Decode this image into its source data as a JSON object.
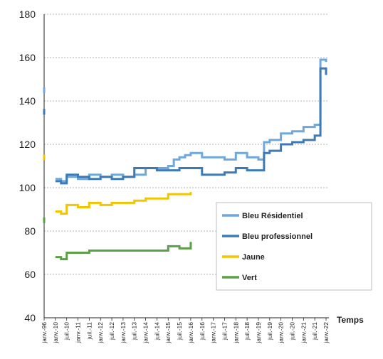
{
  "chart_data": {
    "type": "line",
    "title": "",
    "xlabel": "Temps",
    "ylabel": "",
    "ylim": [
      40,
      180
    ],
    "yticks": [
      40,
      60,
      80,
      100,
      120,
      140,
      160,
      180
    ],
    "grid": "horizontal dashed",
    "legend_position": "right-middle",
    "x_tick_labels": [
      "janv.-96",
      "janv.-10",
      "juil.-10",
      "janv.-11",
      "juil.-11",
      "janv.-12",
      "juil.-12",
      "janv.-13",
      "juil.-13",
      "janv.-14",
      "juil.-14",
      "janv.-15",
      "juil.-15",
      "janv.-16",
      "juil.-16",
      "janv.-17",
      "juil.-17",
      "janv.-18",
      "juil.-18",
      "janv.-19",
      "juil.-19",
      "janv.-20",
      "juil.-20",
      "janv.-21",
      "juil.-21",
      "janv.-22"
    ],
    "series": [
      {
        "name": "Bleu Résidentiel",
        "color": "#6fa8dc",
        "points": [
          [
            0,
            145
          ],
          [
            1,
            104
          ],
          [
            1.5,
            103
          ],
          [
            2,
            105
          ],
          [
            3,
            104
          ],
          [
            4,
            106
          ],
          [
            5,
            105
          ],
          [
            6,
            106
          ],
          [
            7,
            105
          ],
          [
            8,
            106
          ],
          [
            9,
            109
          ],
          [
            10,
            109
          ],
          [
            11,
            110
          ],
          [
            11.5,
            113
          ],
          [
            12,
            114
          ],
          [
            12.5,
            115
          ],
          [
            13,
            116
          ],
          [
            14,
            114
          ],
          [
            15,
            114
          ],
          [
            16,
            113
          ],
          [
            17,
            116
          ],
          [
            18,
            114
          ],
          [
            19,
            113
          ],
          [
            19.5,
            121
          ],
          [
            20,
            122
          ],
          [
            21,
            125
          ],
          [
            22,
            126
          ],
          [
            23,
            128
          ],
          [
            24,
            129
          ],
          [
            24.5,
            159
          ],
          [
            25,
            158
          ]
        ]
      },
      {
        "name": "Bleu professionnel",
        "color": "#3d7ab8",
        "points": [
          [
            0,
            135
          ],
          [
            1,
            103
          ],
          [
            1.5,
            102
          ],
          [
            2,
            106
          ],
          [
            3,
            105
          ],
          [
            4,
            104
          ],
          [
            5,
            105
          ],
          [
            6,
            104
          ],
          [
            7,
            105
          ],
          [
            8,
            109
          ],
          [
            9,
            109
          ],
          [
            10,
            108
          ],
          [
            11,
            108
          ],
          [
            12,
            109
          ],
          [
            13,
            109
          ],
          [
            14,
            106
          ],
          [
            15,
            106
          ],
          [
            16,
            107
          ],
          [
            17,
            109
          ],
          [
            18,
            108
          ],
          [
            19,
            108
          ],
          [
            19.5,
            116
          ],
          [
            20,
            117
          ],
          [
            21,
            120
          ],
          [
            22,
            121
          ],
          [
            23,
            122
          ],
          [
            24,
            124
          ],
          [
            24.5,
            155
          ],
          [
            25,
            152
          ]
        ]
      },
      {
        "name": "Jaune",
        "color": "#f2c500",
        "points": [
          [
            0,
            114
          ],
          [
            1,
            89
          ],
          [
            1.5,
            88
          ],
          [
            2,
            92
          ],
          [
            3,
            91
          ],
          [
            4,
            93
          ],
          [
            5,
            92
          ],
          [
            6,
            93
          ],
          [
            7,
            93
          ],
          [
            8,
            94
          ],
          [
            9,
            95
          ],
          [
            10,
            95
          ],
          [
            11,
            97
          ],
          [
            12,
            97
          ],
          [
            13,
            98
          ]
        ]
      },
      {
        "name": "Vert",
        "color": "#5aa046",
        "points": [
          [
            0,
            85
          ],
          [
            1,
            68
          ],
          [
            1.5,
            67
          ],
          [
            2,
            70
          ],
          [
            3,
            70
          ],
          [
            4,
            71
          ],
          [
            5,
            71
          ],
          [
            6,
            71
          ],
          [
            7,
            71
          ],
          [
            8,
            71
          ],
          [
            9,
            71
          ],
          [
            10,
            71
          ],
          [
            11,
            73
          ],
          [
            12,
            72
          ],
          [
            13,
            75
          ]
        ]
      }
    ]
  }
}
